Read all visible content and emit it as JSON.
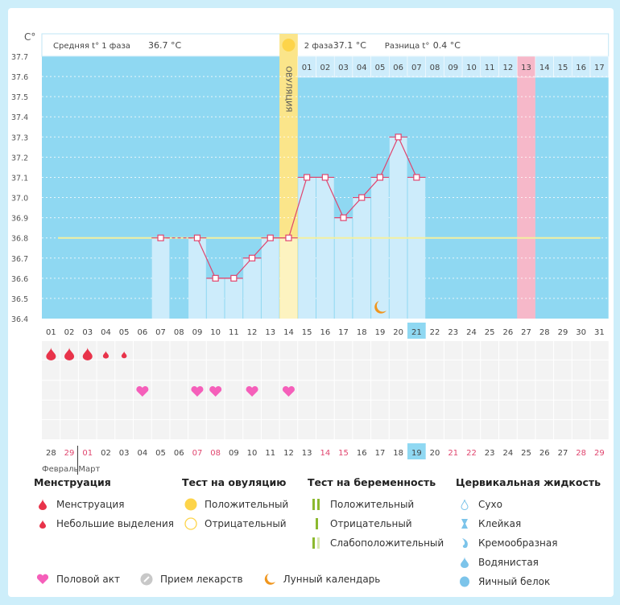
{
  "chart_data": {
    "type": "bar",
    "ylabel": "C°",
    "ylim": [
      36.4,
      37.7
    ],
    "yticks": [
      "36.4",
      "36.5",
      "36.6",
      "36.7",
      "36.8",
      "36.9",
      "37.0",
      "37.1",
      "37.2",
      "37.3",
      "37.4",
      "37.5",
      "37.6",
      "37.7"
    ],
    "cycle_days": [
      "01",
      "02",
      "03",
      "04",
      "05",
      "06",
      "07",
      "08",
      "09",
      "10",
      "11",
      "12",
      "13",
      "14",
      "15",
      "16",
      "17",
      "18",
      "19",
      "20",
      "21",
      "22",
      "23",
      "24",
      "25",
      "26",
      "27",
      "28",
      "29",
      "30",
      "31"
    ],
    "temperatures": [
      null,
      null,
      null,
      null,
      null,
      null,
      36.8,
      null,
      36.8,
      36.6,
      36.6,
      36.7,
      36.8,
      36.8,
      37.1,
      37.1,
      36.9,
      37.0,
      37.1,
      37.3,
      37.1,
      null,
      null,
      null,
      null,
      null,
      null,
      null,
      null,
      null,
      null
    ],
    "coverline": 36.8,
    "ovulation_day": 14,
    "ovulation_label": "ОВУЛЯЦИЯ",
    "expected_period_day": 27,
    "today_cycle_day": 21,
    "moon_day": 19,
    "phase2_days": [
      "01",
      "02",
      "03",
      "04",
      "05",
      "06",
      "07",
      "08",
      "09",
      "10",
      "11",
      "12",
      "13",
      "14",
      "15",
      "16",
      "17"
    ],
    "header": {
      "phase1": "Средняя t° 1 фаза",
      "phase1_value": "36.7 °C",
      "phase2": "2 фаза",
      "phase2_value": "37.1 °C",
      "diff": "Разница t°",
      "diff_value": "0.4 °C"
    },
    "menstruation": {
      "heavy": [
        1,
        2,
        3
      ],
      "light": [
        4,
        5
      ]
    },
    "intercourse_days": [
      6,
      9,
      10,
      12,
      14
    ],
    "calendar_dates": [
      "28",
      "29",
      "01",
      "02",
      "03",
      "04",
      "05",
      "06",
      "07",
      "08",
      "09",
      "10",
      "11",
      "12",
      "13",
      "14",
      "15",
      "16",
      "17",
      "18",
      "19",
      "20",
      "21",
      "22",
      "23",
      "24",
      "25",
      "26",
      "27",
      "28",
      "29"
    ],
    "weekend_idx": [
      1,
      2,
      8,
      9,
      15,
      16,
      22,
      23,
      29,
      30
    ],
    "today_calendar_idx": 20,
    "months": [
      "Февраль",
      "Март"
    ]
  },
  "colors": {
    "sky": "#8fd8f2",
    "bar": "#cdecfb",
    "ovu": "#fbe58a",
    "pink": "#f6b8c9",
    "line": "#e0456e",
    "cover": "#f3f0a0",
    "red": "#e8334a"
  },
  "legend": {
    "menstruation": {
      "title": "Менструация",
      "items": [
        "Менструация",
        "Небольшие выделения"
      ]
    },
    "ovulation_test": {
      "title": "Тест на овуляцию",
      "items": [
        "Положительный",
        "Отрицательный"
      ]
    },
    "pregnancy_test": {
      "title": "Тест на беременность",
      "items": [
        "Положительный",
        "Отрицательный",
        "Слабоположительный"
      ]
    },
    "cervical": {
      "title": "Цервикальная жидкость",
      "items": [
        "Сухо",
        "Клейкая",
        "Кремообразная",
        "Водянистая",
        "Яичный белок"
      ]
    },
    "other": [
      "Половой акт",
      "Прием лекарств",
      "Лунный календарь"
    ]
  }
}
